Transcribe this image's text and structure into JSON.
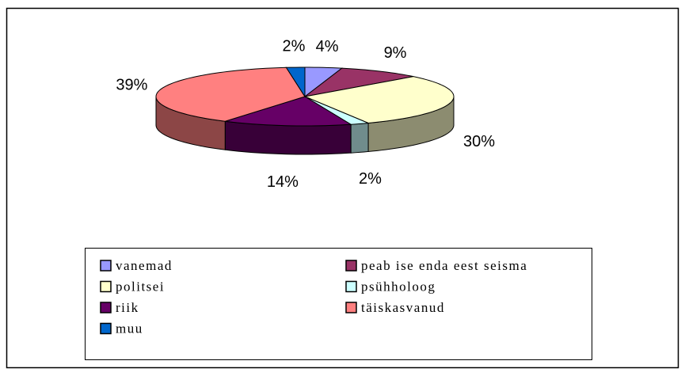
{
  "chart_data": {
    "type": "pie3d",
    "categories": [
      "vanemad",
      "peab ise enda eest seisma",
      "politsei",
      "psühholoog",
      "riik",
      "täiskasvanud",
      "muu"
    ],
    "values": [
      4,
      9,
      30,
      2,
      14,
      39,
      2
    ],
    "value_labels": [
      "4%",
      "9%",
      "30%",
      "2%",
      "14%",
      "39%",
      "2%"
    ],
    "colors": [
      "#9999ff",
      "#993366",
      "#ffffcc",
      "#ccffff",
      "#660066",
      "#ff8080",
      "#0066cc"
    ],
    "legend": "bottom"
  }
}
